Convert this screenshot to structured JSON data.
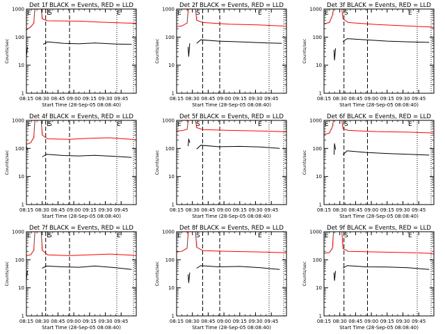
{
  "chart_data": [
    {
      "type": "line",
      "title": "Det 1f BLACK = Events, RED = LLD",
      "ylabel": "Counts/sec",
      "xlabel": "Start Time (28-Sep-05 08:08:40)",
      "yscale": "log",
      "ylim": [
        1,
        1000
      ],
      "yticks": [
        "1",
        "10",
        "100",
        "1000"
      ],
      "xticks": [
        "08:15",
        "08:30",
        "08:45",
        "09:00",
        "09:15",
        "09:30",
        "09:45"
      ],
      "xlim_minutes": [
        480,
        590
      ],
      "markers": [
        "E",
        "E",
        "S",
        "E"
      ],
      "series": [
        {
          "color": "#ff0000",
          "x": [
            480,
            484,
            487,
            488,
            494,
            495,
            500,
            530,
            559,
            583,
            590
          ],
          "y": [
            180,
            230,
            320,
            1000,
            1000,
            450,
            380,
            370,
            330,
            310,
            320
          ]
        },
        {
          "color": "#000000",
          "x": [
            496,
            500,
            515,
            530,
            545,
            565,
            580
          ],
          "y": [
            55,
            68,
            60,
            58,
            62,
            57,
            55
          ]
        },
        {
          "color": "#000000",
          "x": [
            479.5,
            480,
            481
          ],
          "y": [
            40,
            20,
            45
          ]
        }
      ]
    },
    {
      "type": "line",
      "title": "Det 2f BLACK = Events, RED = LLD",
      "ylabel": "Counts/sec",
      "xlabel": "Start Time (28-Sep-05 08:08:40)",
      "yscale": "log",
      "ylim": [
        1,
        1000
      ],
      "yticks": [
        "1",
        "10",
        "100",
        "1000"
      ],
      "xticks": [
        "08:15",
        "08:30",
        "08:45",
        "09:00",
        "09:15",
        "09:30",
        "09:45"
      ],
      "xlim_minutes": [
        480,
        590
      ],
      "markers": [
        "E",
        "S",
        "E"
      ],
      "series": [
        {
          "color": "#ff0000",
          "x": [
            480,
            485,
            490,
            491,
            498,
            499,
            505,
            530,
            559,
            580,
            590
          ],
          "y": [
            240,
            250,
            320,
            1000,
            1000,
            400,
            330,
            290,
            270,
            250,
            240
          ]
        },
        {
          "color": "#000000",
          "x": [
            499,
            503,
            520,
            540,
            560,
            580
          ],
          "y": [
            60,
            80,
            72,
            68,
            63,
            60
          ]
        },
        {
          "color": "#000000",
          "x": [
            491,
            491.5,
            492.5
          ],
          "y": [
            45,
            20,
            60
          ]
        }
      ]
    },
    {
      "type": "line",
      "title": "Det 3f BLACK = Events, RED = LLD",
      "ylabel": "Counts/sec",
      "xlabel": "Start Time (28-Sep-05 08:08:40)",
      "yscale": "log",
      "ylim": [
        1,
        1000
      ],
      "yticks": [
        "1",
        "10",
        "100",
        "1000"
      ],
      "xticks": [
        "08:15",
        "08:30",
        "08:45",
        "09:00",
        "09:15",
        "09:30",
        "09:45"
      ],
      "xlim_minutes": [
        480,
        590
      ],
      "markers": [
        "E",
        "S",
        "E"
      ],
      "series": [
        {
          "color": "#ff0000",
          "x": [
            480,
            485,
            488,
            489,
            497,
            498,
            503,
            530,
            559,
            580,
            590
          ],
          "y": [
            300,
            330,
            600,
            1000,
            1000,
            450,
            330,
            280,
            250,
            230,
            220
          ]
        },
        {
          "color": "#000000",
          "x": [
            498,
            502,
            520,
            540,
            560,
            580
          ],
          "y": [
            70,
            88,
            80,
            72,
            68,
            65
          ]
        },
        {
          "color": "#000000",
          "x": [
            489.5,
            490,
            491
          ],
          "y": [
            35,
            15,
            40
          ]
        }
      ]
    },
    {
      "type": "line",
      "title": "Det 4f BLACK = Events, RED = LLD",
      "ylabel": "Counts/sec",
      "xlabel": "Start Time (28-Sep-05 08:08:40)",
      "yscale": "log",
      "ylim": [
        1,
        1000
      ],
      "yticks": [
        "1",
        "10",
        "100",
        "1000"
      ],
      "xticks": [
        "08:15",
        "08:30",
        "08:45",
        "09:00",
        "09:15",
        "09:30",
        "09:45"
      ],
      "xlim_minutes": [
        480,
        590
      ],
      "markers": [
        "E",
        "E",
        "S",
        "E"
      ],
      "series": [
        {
          "color": "#ff0000",
          "x": [
            480,
            484,
            487,
            488,
            494,
            495,
            500,
            520,
            540,
            559,
            580,
            590
          ],
          "y": [
            140,
            160,
            250,
            1000,
            1000,
            300,
            220,
            210,
            230,
            240,
            210,
            200
          ]
        },
        {
          "color": "#000000",
          "x": [
            495,
            499,
            515,
            530,
            545,
            565,
            580
          ],
          "y": [
            50,
            62,
            56,
            54,
            57,
            52,
            48
          ]
        },
        {
          "color": "#000000",
          "x": [
            479.5,
            480,
            481
          ],
          "y": [
            60,
            120,
            90
          ]
        }
      ]
    },
    {
      "type": "line",
      "title": "Det 5f BLACK = Events, RED = LLD",
      "ylabel": "Counts/sec",
      "xlabel": "Start Time (28-Sep-05 08:08:40)",
      "yscale": "log",
      "ylim": [
        1,
        1000
      ],
      "yticks": [
        "1",
        "10",
        "100",
        "1000"
      ],
      "xticks": [
        "08:15",
        "08:30",
        "08:45",
        "09:00",
        "09:15",
        "09:30",
        "09:45"
      ],
      "xlim_minutes": [
        480,
        590
      ],
      "markers": [
        "E",
        "S",
        "E"
      ],
      "series": [
        {
          "color": "#ff0000",
          "x": [
            480,
            485,
            490,
            491,
            498,
            499,
            505,
            530,
            559,
            580,
            590
          ],
          "y": [
            420,
            430,
            480,
            1000,
            1000,
            550,
            470,
            440,
            420,
            400,
            390
          ]
        },
        {
          "color": "#000000",
          "x": [
            499,
            503,
            520,
            540,
            560,
            578
          ],
          "y": [
            95,
            130,
            115,
            118,
            112,
            100
          ]
        },
        {
          "color": "#000000",
          "x": [
            491,
            491.5,
            492.5
          ],
          "y": [
            120,
            220,
            160
          ]
        }
      ]
    },
    {
      "type": "line",
      "title": "Det 6f BLACK = Events, RED = LLD",
      "ylabel": "Counts/sec",
      "xlabel": "Start Time (28-Sep-05 08:08:40)",
      "yscale": "log",
      "ylim": [
        1,
        1000
      ],
      "yticks": [
        "1",
        "10",
        "100",
        "1000"
      ],
      "xticks": [
        "08:15",
        "08:30",
        "08:45",
        "09:00",
        "09:15",
        "09:30",
        "09:45"
      ],
      "xlim_minutes": [
        480,
        590
      ],
      "markers": [
        "E",
        "S",
        "E"
      ],
      "series": [
        {
          "color": "#ff0000",
          "x": [
            480,
            485,
            488,
            489,
            497,
            498,
            503,
            530,
            559,
            580,
            590
          ],
          "y": [
            320,
            350,
            600,
            1000,
            1000,
            500,
            440,
            400,
            380,
            360,
            350
          ]
        },
        {
          "color": "#000000",
          "x": [
            498,
            502,
            520,
            540,
            560,
            580
          ],
          "y": [
            60,
            82,
            72,
            66,
            62,
            58
          ]
        },
        {
          "color": "#000000",
          "x": [
            489.5,
            490,
            491
          ],
          "y": [
            60,
            150,
            90
          ]
        }
      ]
    },
    {
      "type": "line",
      "title": "Det 7f BLACK = Events, RED = LLD",
      "ylabel": "Counts/sec",
      "xlabel": "Start Time (28-Sep-05 08:08:40)",
      "yscale": "log",
      "ylim": [
        1,
        1000
      ],
      "yticks": [
        "1",
        "10",
        "100",
        "1000"
      ],
      "xticks": [
        "08:15",
        "08:30",
        "08:45",
        "09:00",
        "09:15",
        "09:30",
        "09:45"
      ],
      "xlim_minutes": [
        480,
        590
      ],
      "markers": [
        "E",
        "E",
        "S",
        "E"
      ],
      "series": [
        {
          "color": "#ff0000",
          "x": [
            480,
            484,
            487,
            488,
            494,
            495,
            500,
            520,
            540,
            559,
            580,
            590
          ],
          "y": [
            140,
            150,
            220,
            1000,
            1000,
            220,
            150,
            140,
            150,
            160,
            145,
            140
          ]
        },
        {
          "color": "#000000",
          "x": [
            495,
            499,
            515,
            530,
            545,
            565,
            580
          ],
          "y": [
            50,
            60,
            56,
            54,
            60,
            52,
            45
          ]
        },
        {
          "color": "#000000",
          "x": [
            479.5,
            480,
            481
          ],
          "y": [
            35,
            20,
            40
          ]
        }
      ]
    },
    {
      "type": "line",
      "title": "Det 8f BLACK = Events, RED = LLD",
      "ylabel": "Counts/sec",
      "xlabel": "Start Time (28-Sep-05 08:08:40)",
      "yscale": "log",
      "ylim": [
        1,
        1000
      ],
      "yticks": [
        "1",
        "10",
        "100",
        "1000"
      ],
      "xticks": [
        "08:15",
        "08:30",
        "08:45",
        "09:00",
        "09:15",
        "09:30",
        "09:45"
      ],
      "xlim_minutes": [
        480,
        590
      ],
      "markers": [
        "E",
        "S",
        "E"
      ],
      "series": [
        {
          "color": "#ff0000",
          "x": [
            480,
            485,
            490,
            491,
            498,
            499,
            505,
            530,
            559,
            580,
            590
          ],
          "y": [
            190,
            200,
            260,
            1000,
            1000,
            280,
            210,
            200,
            190,
            180,
            175
          ]
        },
        {
          "color": "#000000",
          "x": [
            499,
            503,
            520,
            540,
            560,
            578
          ],
          "y": [
            50,
            62,
            56,
            58,
            52,
            45
          ]
        },
        {
          "color": "#000000",
          "x": [
            491,
            491.5,
            492.5
          ],
          "y": [
            30,
            15,
            35
          ]
        }
      ]
    },
    {
      "type": "line",
      "title": "Det 9f BLACK = Events, RED = LLD",
      "ylabel": "Counts/sec",
      "xlabel": "Start Time (28-Sep-05 08:08:40)",
      "yscale": "log",
      "ylim": [
        1,
        1000
      ],
      "yticks": [
        "1",
        "10",
        "100",
        "1000"
      ],
      "xticks": [
        "08:15",
        "08:30",
        "08:45",
        "09:00",
        "09:15",
        "09:30",
        "09:45"
      ],
      "xlim_minutes": [
        480,
        590
      ],
      "markers": [
        "E",
        "S",
        "E"
      ],
      "series": [
        {
          "color": "#ff0000",
          "x": [
            480,
            485,
            488,
            489,
            497,
            498,
            503,
            530,
            559,
            580,
            590
          ],
          "y": [
            170,
            180,
            260,
            1000,
            1000,
            250,
            200,
            190,
            180,
            170,
            160
          ]
        },
        {
          "color": "#000000",
          "x": [
            498,
            502,
            520,
            540,
            560,
            580
          ],
          "y": [
            50,
            62,
            56,
            55,
            52,
            45
          ]
        },
        {
          "color": "#000000",
          "x": [
            489.5,
            490,
            491
          ],
          "y": [
            35,
            18,
            40
          ]
        }
      ]
    }
  ]
}
